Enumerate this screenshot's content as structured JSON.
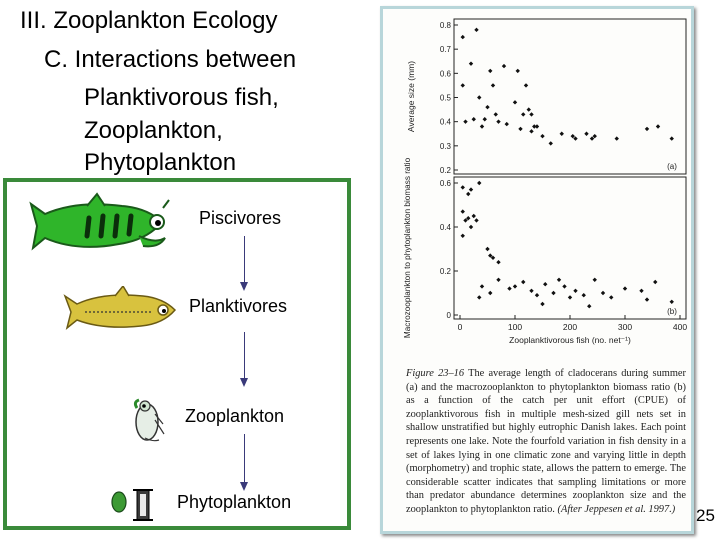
{
  "slide": {
    "heading_lines": [
      "III. Zooplankton Ecology",
      "C. Interactions between",
      "Planktivorous fish,",
      "Zooplankton,",
      "Phytoplankton"
    ],
    "page_number": "25"
  },
  "food_web": {
    "border_color": "#3a8a3a",
    "levels": [
      "Piscivores",
      "Planktivores",
      "Zooplankton",
      "Phytoplankton"
    ],
    "icons": [
      "piscivore-fish-icon",
      "planktivore-fish-icon",
      "zooplankton-icon",
      "phytoplankton-icon"
    ]
  },
  "figure": {
    "caption": {
      "label": "Figure 23–16",
      "text": "The average length of cladocerans during summer (a) and the macrozooplankton to phytoplankton biomass ratio (b) as a function of the catch per unit effort (CPUE) of zooplanktivorous fish in multiple mesh-sized gill nets set in shallow unstratified but highly eutrophic Danish lakes. Each point represents one lake. Note the fourfold variation in fish density in a set of lakes lying in one climatic zone and varying little in depth (morphometry) and trophic state, allows the pattern to emerge. The considerable scatter indicates that sampling limitations or more than predator abundance determines zooplankton size and the zooplankton to phytoplankton ratio.",
      "citation": "(After Jeppesen et al. 1997.)"
    }
  },
  "chart_data": [
    {
      "type": "scatter",
      "panel_label": "(a)",
      "title": "",
      "xlabel": "",
      "ylabel": "Average size (mm)",
      "xlim": [
        0,
        400
      ],
      "ylim": [
        0.2,
        0.8
      ],
      "yticks": [
        "0.8",
        "0.7",
        "0.6",
        "0.5",
        "0.4",
        "0.3",
        "0.2"
      ],
      "grid": false,
      "x": [
        5,
        30,
        20,
        55,
        80,
        60,
        105,
        120,
        130,
        135,
        35,
        50,
        45,
        65,
        85,
        100,
        115,
        125,
        140,
        150,
        5,
        25,
        40,
        70,
        110,
        130,
        165,
        185,
        205,
        210,
        230,
        240,
        245,
        285,
        340,
        360,
        385,
        10
      ],
      "y": [
        0.75,
        0.78,
        0.64,
        0.61,
        0.63,
        0.55,
        0.61,
        0.55,
        0.43,
        0.38,
        0.5,
        0.46,
        0.41,
        0.43,
        0.39,
        0.48,
        0.43,
        0.45,
        0.38,
        0.34,
        0.55,
        0.41,
        0.38,
        0.4,
        0.37,
        0.36,
        0.31,
        0.35,
        0.34,
        0.33,
        0.35,
        0.33,
        0.34,
        0.33,
        0.37,
        0.38,
        0.33,
        0.4
      ]
    },
    {
      "type": "scatter",
      "panel_label": "(b)",
      "title": "",
      "xlabel": "Zooplanktivorous fish (no. net⁻¹)",
      "ylabel": "Macrozooplankton to phytoplankton biomass ratio",
      "xlim": [
        0,
        400
      ],
      "ylim": [
        0,
        0.6
      ],
      "xticks": [
        "0",
        "100",
        "200",
        "300",
        "400"
      ],
      "yticks": [
        "0.6",
        "0.4",
        "0.2",
        "0"
      ],
      "grid": false,
      "x": [
        5,
        15,
        20,
        35,
        10,
        5,
        15,
        25,
        20,
        30,
        5,
        55,
        60,
        70,
        50,
        35,
        40,
        55,
        70,
        90,
        100,
        115,
        130,
        140,
        150,
        155,
        170,
        180,
        190,
        200,
        210,
        225,
        235,
        245,
        260,
        275,
        300,
        330,
        340,
        355,
        385
      ],
      "y": [
        0.58,
        0.55,
        0.57,
        0.6,
        0.43,
        0.47,
        0.44,
        0.45,
        0.4,
        0.43,
        0.36,
        0.27,
        0.26,
        0.24,
        0.3,
        0.08,
        0.13,
        0.1,
        0.16,
        0.12,
        0.13,
        0.15,
        0.11,
        0.09,
        0.05,
        0.14,
        0.1,
        0.16,
        0.13,
        0.08,
        0.11,
        0.09,
        0.04,
        0.16,
        0.1,
        0.08,
        0.12,
        0.11,
        0.07,
        0.15,
        0.06
      ]
    }
  ]
}
